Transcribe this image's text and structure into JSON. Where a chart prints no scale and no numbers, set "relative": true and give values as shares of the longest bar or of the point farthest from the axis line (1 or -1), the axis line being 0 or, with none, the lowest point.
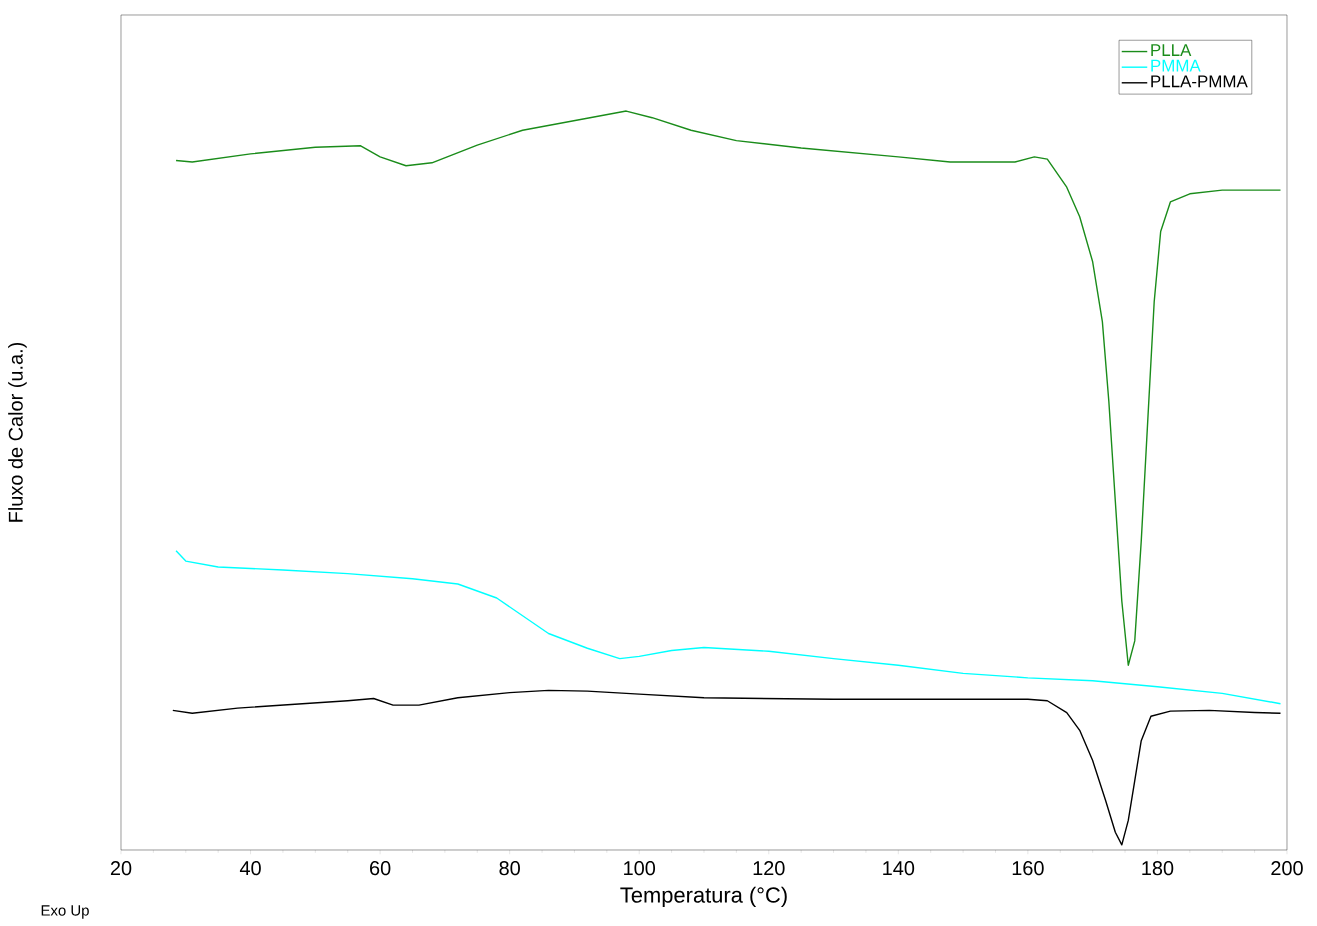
{
  "chart_data": {
    "type": "line",
    "xlabel": "Temperatura (°C)",
    "ylabel": "Fluxo de Calor (u.a.)",
    "relative": true,
    "xlim": [
      20,
      200
    ],
    "xticks": [
      20,
      40,
      60,
      80,
      100,
      120,
      140,
      160,
      180,
      200
    ],
    "legend": "top right",
    "marker": "none",
    "line_style": "solid",
    "grid": false,
    "annotations": [
      "Exo Up"
    ],
    "series": [
      {
        "name": "PLLA",
        "color": "#1a8c1a",
        "x": [
          28.5,
          31,
          40,
          50,
          57,
          60,
          64,
          68,
          75,
          82,
          90,
          98,
          102,
          108,
          115,
          125,
          140,
          148,
          158,
          161,
          163,
          166,
          168,
          170,
          171.5,
          172.5,
          173.5,
          174.5,
          175.5,
          176.5,
          177.5,
          178.5,
          179.5,
          180.5,
          182,
          185,
          190,
          199
        ],
        "values": [
          0.933,
          0.931,
          0.942,
          0.951,
          0.953,
          0.938,
          0.926,
          0.93,
          0.954,
          0.974,
          0.987,
          1.0,
          0.991,
          0.974,
          0.96,
          0.95,
          0.938,
          0.931,
          0.931,
          0.938,
          0.935,
          0.897,
          0.857,
          0.796,
          0.715,
          0.607,
          0.472,
          0.337,
          0.25,
          0.283,
          0.418,
          0.58,
          0.742,
          0.837,
          0.877,
          0.888,
          0.893,
          0.893
        ]
      },
      {
        "name": "PMMA",
        "color": "#00ffff",
        "x": [
          28.5,
          30,
          35,
          45,
          55,
          65,
          72,
          78,
          82,
          86,
          92,
          97,
          100,
          105,
          110,
          120,
          130,
          140,
          150,
          160,
          170,
          180,
          190,
          199
        ],
        "values": [
          0.405,
          0.391,
          0.383,
          0.379,
          0.374,
          0.367,
          0.36,
          0.341,
          0.317,
          0.293,
          0.273,
          0.259,
          0.262,
          0.27,
          0.274,
          0.269,
          0.259,
          0.25,
          0.239,
          0.233,
          0.229,
          0.221,
          0.212,
          0.198
        ]
      },
      {
        "name": "PLLA-PMMA",
        "color": "#000000",
        "x": [
          28,
          31,
          38,
          48,
          55,
          59,
          62,
          66,
          72,
          80,
          86,
          92,
          100,
          110,
          130,
          150,
          160,
          163,
          166,
          168,
          170,
          172,
          173.5,
          174.5,
          175.5,
          176.5,
          177.5,
          179,
          182,
          188,
          195,
          199
        ],
        "values": [
          0.189,
          0.185,
          0.192,
          0.198,
          0.202,
          0.205,
          0.196,
          0.196,
          0.206,
          0.213,
          0.216,
          0.215,
          0.211,
          0.206,
          0.204,
          0.204,
          0.204,
          0.202,
          0.186,
          0.162,
          0.121,
          0.067,
          0.024,
          0.007,
          0.04,
          0.094,
          0.148,
          0.181,
          0.188,
          0.189,
          0.186,
          0.185
        ]
      }
    ]
  }
}
